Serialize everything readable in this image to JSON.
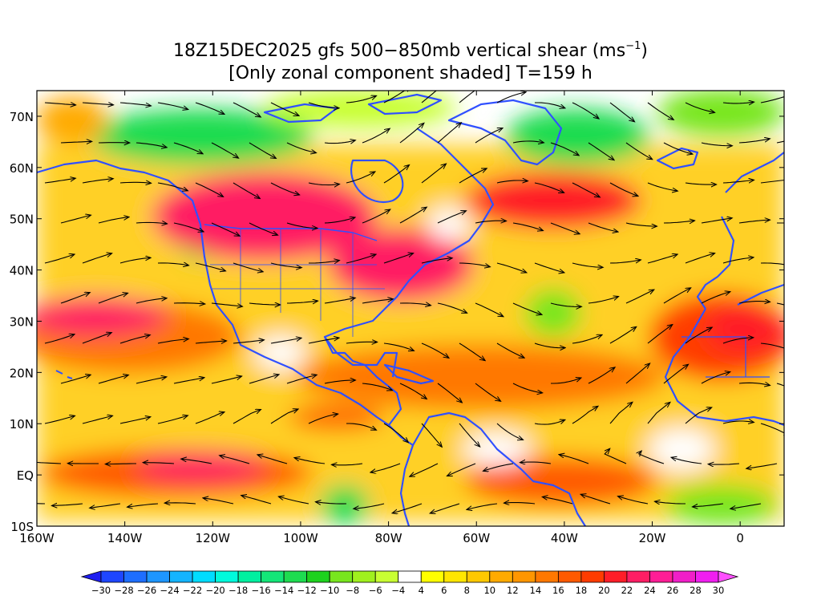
{
  "title": {
    "line1": "18Z15DEC2025 gfs 500−850mb vertical shear (ms",
    "line1_sup": "−1",
    "line1_end": ")",
    "line2": "[Only zonal component shaded] T=159 h"
  },
  "map": {
    "lon_range": [
      -160,
      10
    ],
    "lat_range": [
      -10,
      75
    ],
    "lon_ticks": [
      {
        "value": -160,
        "label": "160W"
      },
      {
        "value": -140,
        "label": "140W"
      },
      {
        "value": -120,
        "label": "120W"
      },
      {
        "value": -100,
        "label": "100W"
      },
      {
        "value": -80,
        "label": "80W"
      },
      {
        "value": -60,
        "label": "60W"
      },
      {
        "value": -40,
        "label": "40W"
      },
      {
        "value": -20,
        "label": "20W"
      },
      {
        "value": 0,
        "label": "0"
      }
    ],
    "lat_ticks": [
      {
        "value": 70,
        "label": "70N"
      },
      {
        "value": 60,
        "label": "60N"
      },
      {
        "value": 50,
        "label": "50N"
      },
      {
        "value": 40,
        "label": "40N"
      },
      {
        "value": 30,
        "label": "30N"
      },
      {
        "value": 20,
        "label": "20N"
      },
      {
        "value": 10,
        "label": "10N"
      },
      {
        "value": 0,
        "label": "EQ"
      },
      {
        "value": -10,
        "label": "10S"
      }
    ],
    "coastline_color": "#3050ff",
    "streamline_color": "#000000"
  },
  "colorbar": {
    "labels": [
      "−30",
      "−28",
      "−26",
      "−24",
      "−22",
      "−20",
      "−18",
      "−16",
      "−14",
      "−12",
      "−10",
      "−8",
      "−6",
      "−4",
      "4",
      "6",
      "8",
      "10",
      "12",
      "14",
      "16",
      "18",
      "20",
      "22",
      "24",
      "26",
      "28",
      "30"
    ],
    "colors": [
      "#1e1ef0",
      "#1e46ff",
      "#1e6eff",
      "#1e96ff",
      "#14b4ff",
      "#00dcff",
      "#00fadc",
      "#00f0a0",
      "#14e678",
      "#1edc50",
      "#1ed21e",
      "#78e61e",
      "#a0f01e",
      "#c8ff32",
      "#ffffff",
      "#ffff00",
      "#ffe600",
      "#ffc800",
      "#ffaa00",
      "#ff9600",
      "#ff7800",
      "#ff5a00",
      "#ff3c00",
      "#ff1e28",
      "#ff1e64",
      "#ff1e96",
      "#f01ec8",
      "#f01ef0",
      "#ff50ff"
    ]
  }
}
